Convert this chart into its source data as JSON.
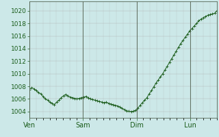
{
  "background_color": "#cce8e8",
  "plot_background_color": "#cce8e8",
  "line_color": "#1a5c1a",
  "marker_color": "#1a5c1a",
  "grid_color": "#aaaaaa",
  "tick_label_color": "#1a5c1a",
  "ylim": [
    1003.0,
    1021.5
  ],
  "yticks": [
    1004,
    1006,
    1008,
    1010,
    1012,
    1014,
    1016,
    1018,
    1020
  ],
  "xtick_labels": [
    "Ven",
    "Sam",
    "Dim",
    "Lun"
  ],
  "xtick_positions": [
    0,
    24,
    48,
    72
  ],
  "total_hours": 84,
  "ytick_fontsize": 6.5,
  "xtick_fontsize": 7,
  "pressure_values": [
    1007.5,
    1007.8,
    1007.6,
    1007.3,
    1007.0,
    1006.8,
    1006.4,
    1006.0,
    1005.8,
    1005.5,
    1005.3,
    1005.1,
    1005.5,
    1005.8,
    1006.2,
    1006.5,
    1006.7,
    1006.5,
    1006.3,
    1006.2,
    1006.1,
    1006.0,
    1006.1,
    1006.2,
    1006.3,
    1006.4,
    1006.2,
    1006.0,
    1005.9,
    1005.8,
    1005.7,
    1005.6,
    1005.5,
    1005.4,
    1005.5,
    1005.3,
    1005.2,
    1005.1,
    1005.0,
    1004.9,
    1004.7,
    1004.5,
    1004.3,
    1004.1,
    1004.05,
    1004.0,
    1004.05,
    1004.2,
    1004.5,
    1005.0,
    1005.4,
    1005.8,
    1006.2,
    1006.8,
    1007.3,
    1007.9,
    1008.5,
    1009.0,
    1009.5,
    1010.0,
    1010.6,
    1011.2,
    1011.8,
    1012.4,
    1013.0,
    1013.6,
    1014.2,
    1014.8,
    1015.3,
    1015.8,
    1016.3,
    1016.8,
    1017.2,
    1017.6,
    1018.0,
    1018.4,
    1018.7,
    1018.9,
    1019.1,
    1019.3,
    1019.4,
    1019.5,
    1019.6,
    1020.0
  ]
}
